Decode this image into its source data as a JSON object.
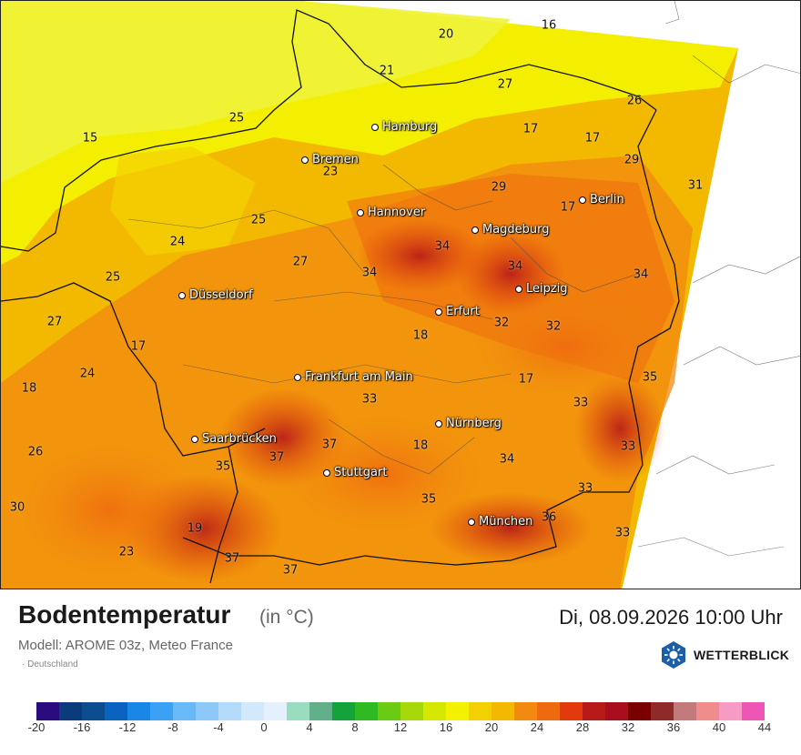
{
  "map": {
    "cities": [
      {
        "name": "Hamburg"
      },
      {
        "name": "Bremen"
      },
      {
        "name": "Hannover"
      },
      {
        "name": "Berlin"
      },
      {
        "name": "Magdeburg"
      },
      {
        "name": "Düsseldorf"
      },
      {
        "name": "Leipzig"
      },
      {
        "name": "Erfurt"
      },
      {
        "name": "Frankfurt am Main"
      },
      {
        "name": "Nürnberg"
      },
      {
        "name": "Saarbrücken"
      },
      {
        "name": "Stuttgart"
      },
      {
        "name": "München"
      }
    ],
    "temperatures": [
      "16",
      "20",
      "21",
      "27",
      "26",
      "17",
      "17",
      "25",
      "15",
      "23",
      "29",
      "31",
      "29",
      "17",
      "25",
      "24",
      "34",
      "27",
      "34",
      "34",
      "25",
      "32",
      "32",
      "34",
      "27",
      "18",
      "17",
      "24",
      "18",
      "17",
      "35",
      "33",
      "33",
      "26",
      "33",
      "37",
      "18",
      "34",
      "37",
      "35",
      "33",
      "30",
      "35",
      "36",
      "19",
      "33",
      "23",
      "37",
      "37"
    ]
  },
  "footer": {
    "title": "Bodentemperatur",
    "unit": "(in °C)",
    "datetime": "Di, 08.09.2026 10:00 Uhr",
    "model": "Modell: AROME 03z, Meteo France",
    "region": "· Deutschland",
    "brand": "WETTERBLICK"
  },
  "legend": {
    "colors": [
      "#2b0c7e",
      "#0a3b7a",
      "#0d4c8f",
      "#0a63bf",
      "#1a86e6",
      "#3aa1f5",
      "#6ab9f7",
      "#8ec8f8",
      "#b4dbfa",
      "#d2e8fb",
      "#e4f1fc",
      "#99dcc0",
      "#62b08a",
      "#14a33a",
      "#2fba23",
      "#6bcb12",
      "#a7d80a",
      "#d6e800",
      "#f3f000",
      "#f3d100",
      "#f3b800",
      "#f28a10",
      "#ef6a0e",
      "#e23a0d",
      "#b61a19",
      "#a80e1d",
      "#7a0000",
      "#8f2a2a",
      "#c37a7a",
      "#f08c8c",
      "#f79ac4",
      "#ee55b4"
    ],
    "ticks": [
      "-20",
      "-16",
      "-12",
      "-8",
      "-4",
      "0",
      "4",
      "8",
      "12",
      "16",
      "20",
      "24",
      "28",
      "32",
      "36",
      "40",
      "44"
    ]
  }
}
